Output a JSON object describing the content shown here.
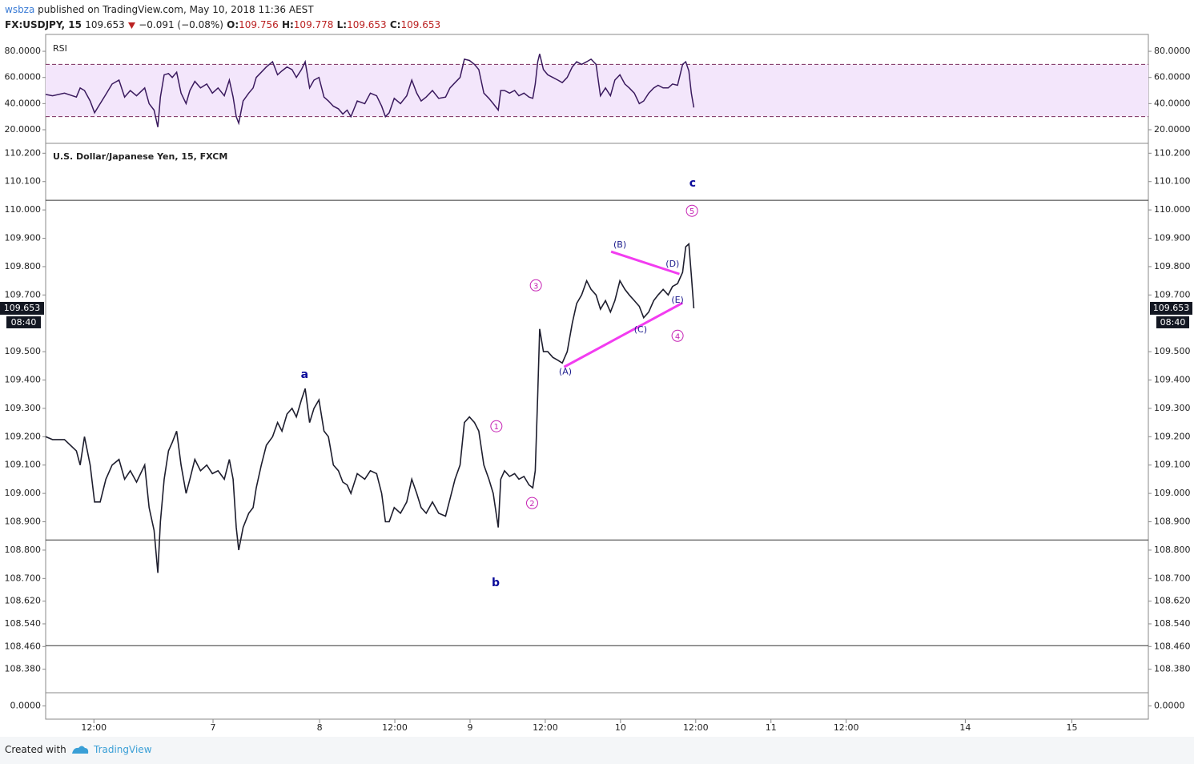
{
  "header": {
    "author": "wsbza",
    "published": "published on TradingView.com, May 10, 2018 11:36 AEST",
    "symbol": "FX:USDJPY, 15",
    "last": "109.653",
    "change": "−0.091 (−0.08%)",
    "o_label": "O:",
    "o": "109.756",
    "h_label": "H:",
    "h": "109.778",
    "l_label": "L:",
    "l": "109.653",
    "c_label": "C:",
    "c": "109.653"
  },
  "footer": {
    "created": "Created with",
    "brand": "TradingView"
  },
  "chart_data": [
    {
      "type": "line",
      "title": "U.S. Dollar/Japanese Yen, 15, FXCM",
      "color": "#1e1e2e",
      "x": [
        4.3,
        5.4,
        7.3,
        9.2,
        9.8,
        10.5,
        11.4,
        12.1,
        13.0,
        13.9,
        14.9,
        16.0,
        16.9,
        17.8,
        18.8,
        20.1,
        20.8,
        21.6,
        22.2,
        22.6,
        23.2,
        23.9,
        24.5,
        25.2,
        25.9,
        26.7,
        27.3,
        28.1,
        29.0,
        30.0,
        30.9,
        31.8,
        32.8,
        33.6,
        34.2,
        34.7,
        35.1,
        35.8,
        36.7,
        37.4,
        37.9,
        38.7,
        39.5,
        40.5,
        41.3,
        42.0,
        42.8,
        43.6,
        44.3,
        45.1,
        45.7,
        46.4,
        47.1,
        47.9,
        48.7,
        49.4,
        50.2,
        51.0,
        51.7,
        52.4,
        53.0,
        54.0,
        55.2,
        56.1,
        57.1,
        57.9,
        58.5,
        59.1,
        59.9,
        60.9,
        61.9,
        62.7,
        63.5,
        64.2,
        65.0,
        66.0,
        67.0,
        68.1,
        68.8,
        69.6,
        70.4,
        71.1,
        71.9,
        72.7,
        73.4,
        74.2,
        75.0,
        75.7,
        76.5,
        76.9,
        77.5,
        78.3,
        79.1,
        79.8,
        80.6,
        81.4,
        82.0,
        82.4,
        82.8,
        83.1,
        83.7,
        84.4,
        85.2,
        86.0,
        86.7,
        87.5,
        88.3,
        89.0,
        89.8,
        90.6,
        91.3,
        92.1,
        92.8,
        93.6,
        94.4,
        95.1,
        95.9,
        96.7,
        97.4,
        98.2,
        99.0,
        99.7,
        100.5,
        101.3,
        102.0,
        102.8,
        103.6,
        104.3,
        105.1,
        105.9,
        106.4,
        106.9,
        107.3,
        107.7
      ],
      "values": [
        109.2,
        109.19,
        109.19,
        109.15,
        109.1,
        109.2,
        109.1,
        108.97,
        108.97,
        109.05,
        109.1,
        109.12,
        109.05,
        109.08,
        109.04,
        109.1,
        108.95,
        108.87,
        108.72,
        108.9,
        109.05,
        109.15,
        109.18,
        109.22,
        109.1,
        109.0,
        109.05,
        109.12,
        109.08,
        109.1,
        109.07,
        109.08,
        109.05,
        109.12,
        109.05,
        108.88,
        108.8,
        108.88,
        108.93,
        108.95,
        109.02,
        109.1,
        109.17,
        109.2,
        109.25,
        109.22,
        109.28,
        109.3,
        109.27,
        109.33,
        109.37,
        109.25,
        109.3,
        109.33,
        109.22,
        109.2,
        109.1,
        109.08,
        109.04,
        109.03,
        109.0,
        109.07,
        109.05,
        109.08,
        109.07,
        109.0,
        108.9,
        108.9,
        108.95,
        108.93,
        108.97,
        109.05,
        109.0,
        108.95,
        108.93,
        108.97,
        108.93,
        108.92,
        108.98,
        109.05,
        109.1,
        109.25,
        109.27,
        109.25,
        109.22,
        109.1,
        109.05,
        109.0,
        108.88,
        109.05,
        109.08,
        109.06,
        109.07,
        109.05,
        109.06,
        109.03,
        109.02,
        109.08,
        109.35,
        109.58,
        109.5,
        109.5,
        109.48,
        109.47,
        109.46,
        109.5,
        109.6,
        109.67,
        109.7,
        109.75,
        109.72,
        109.7,
        109.65,
        109.68,
        109.64,
        109.68,
        109.75,
        109.72,
        109.7,
        109.68,
        109.66,
        109.62,
        109.64,
        109.68,
        109.7,
        109.72,
        109.7,
        109.73,
        109.74,
        109.78,
        109.87,
        109.88,
        109.77,
        109.653
      ],
      "xlim": [
        4.3,
        180.2
      ],
      "xticks": [
        {
          "value": 12,
          "label": "12:00"
        },
        {
          "value": 31,
          "label": "7"
        },
        {
          "value": 48,
          "label": "8"
        },
        {
          "value": 60,
          "label": "12:00"
        },
        {
          "value": 72,
          "label": "9"
        },
        {
          "value": 84,
          "label": "12:00"
        },
        {
          "value": 96,
          "label": "10"
        },
        {
          "value": 108,
          "label": "12:00"
        },
        {
          "value": 120,
          "label": "11"
        },
        {
          "value": 132,
          "label": "12:00"
        },
        {
          "value": 151,
          "label": "14"
        },
        {
          "value": 168,
          "label": "15"
        }
      ],
      "ylim": [
        108.297,
        110.232
      ],
      "yticks": [
        {
          "value": 110.2,
          "label": "110.200"
        },
        {
          "value": 110.1,
          "label": "110.100"
        },
        {
          "value": 110.0,
          "label": "110.000"
        },
        {
          "value": 109.9,
          "label": "109.900"
        },
        {
          "value": 109.8,
          "label": "109.800"
        },
        {
          "value": 109.7,
          "label": "109.700"
        },
        {
          "value": 109.5,
          "label": "109.500"
        },
        {
          "value": 109.4,
          "label": "109.400"
        },
        {
          "value": 109.3,
          "label": "109.300"
        },
        {
          "value": 109.2,
          "label": "109.200"
        },
        {
          "value": 109.1,
          "label": "109.100"
        },
        {
          "value": 109.0,
          "label": "109.000"
        },
        {
          "value": 108.9,
          "label": "108.900"
        },
        {
          "value": 108.8,
          "label": "108.800"
        },
        {
          "value": 108.7,
          "label": "108.700"
        },
        {
          "value": 108.62,
          "label": "108.620"
        },
        {
          "value": 108.54,
          "label": "108.540"
        },
        {
          "value": 108.46,
          "label": "108.460"
        },
        {
          "value": 108.38,
          "label": "108.380"
        }
      ],
      "last_price": 109.653,
      "countdown": "08:40",
      "horizontal_lines": [
        110.034,
        108.836,
        108.463
      ],
      "trendlines": [
        {
          "x": [
            94.5,
            105.4
          ],
          "y": [
            109.853,
            109.774
          ]
        },
        {
          "x": [
            87.0,
            105.9
          ],
          "y": [
            109.446,
            109.672
          ]
        }
      ],
      "wave_labels": [
        {
          "text": "a",
          "x": 45.6,
          "y": 109.418
        },
        {
          "text": "b",
          "x": 76.1,
          "y": 108.684
        },
        {
          "text": "c",
          "x": 107.5,
          "y": 110.093
        }
      ],
      "circled_labels": [
        {
          "text": "1",
          "x": 76.2,
          "y": 109.237
        },
        {
          "text": "2",
          "x": 81.9,
          "y": 108.966
        },
        {
          "text": "3",
          "x": 82.5,
          "y": 109.734
        },
        {
          "text": "4",
          "x": 105.1,
          "y": 109.556
        },
        {
          "text": "5",
          "x": 107.4,
          "y": 109.997
        }
      ],
      "triangle_labels": [
        {
          "text": "(A)",
          "x": 87.2,
          "y": 109.429
        },
        {
          "text": "(B)",
          "x": 95.9,
          "y": 109.876
        },
        {
          "text": "(C)",
          "x": 99.2,
          "y": 109.576
        },
        {
          "text": "(D)",
          "x": 104.3,
          "y": 109.808
        },
        {
          "text": "(E)",
          "x": 105.1,
          "y": 109.681
        }
      ]
    },
    {
      "type": "line",
      "title": "RSI",
      "color": "#3a1a5e",
      "values": [
        47,
        46,
        48,
        45,
        52,
        50,
        42,
        33,
        40,
        47,
        55,
        58,
        45,
        50,
        46,
        52,
        40,
        35,
        22,
        45,
        62,
        63,
        60,
        64,
        48,
        40,
        50,
        57,
        52,
        55,
        48,
        52,
        46,
        58,
        45,
        30,
        25,
        42,
        48,
        52,
        60,
        64,
        68,
        72,
        62,
        65,
        68,
        66,
        60,
        66,
        72,
        52,
        58,
        60,
        45,
        42,
        38,
        36,
        32,
        35,
        30,
        42,
        40,
        48,
        46,
        38,
        30,
        33,
        44,
        40,
        46,
        58,
        48,
        42,
        45,
        50,
        44,
        45,
        52,
        56,
        60,
        74,
        73,
        70,
        66,
        48,
        44,
        40,
        35,
        50,
        50,
        48,
        50,
        46,
        48,
        45,
        44,
        55,
        72,
        78,
        66,
        62,
        60,
        58,
        56,
        60,
        68,
        72,
        70,
        72,
        74,
        70,
        46,
        52,
        46,
        58,
        62,
        55,
        52,
        48,
        40,
        42,
        48,
        52,
        54,
        52,
        52,
        55,
        54,
        70,
        72,
        65,
        48,
        37
      ],
      "band": [
        30,
        70
      ],
      "ylim": [
        10.2,
        92.9
      ],
      "yticks": [
        {
          "value": 80,
          "label": "80.0000"
        },
        {
          "value": 60,
          "label": "60.0000"
        },
        {
          "value": 40,
          "label": "40.0000"
        },
        {
          "value": 20,
          "label": "20.0000"
        }
      ]
    },
    {
      "type": "line",
      "ylim": [
        -1,
        1
      ],
      "yticks": [
        {
          "value": 0,
          "label": "0.0000"
        }
      ]
    }
  ]
}
